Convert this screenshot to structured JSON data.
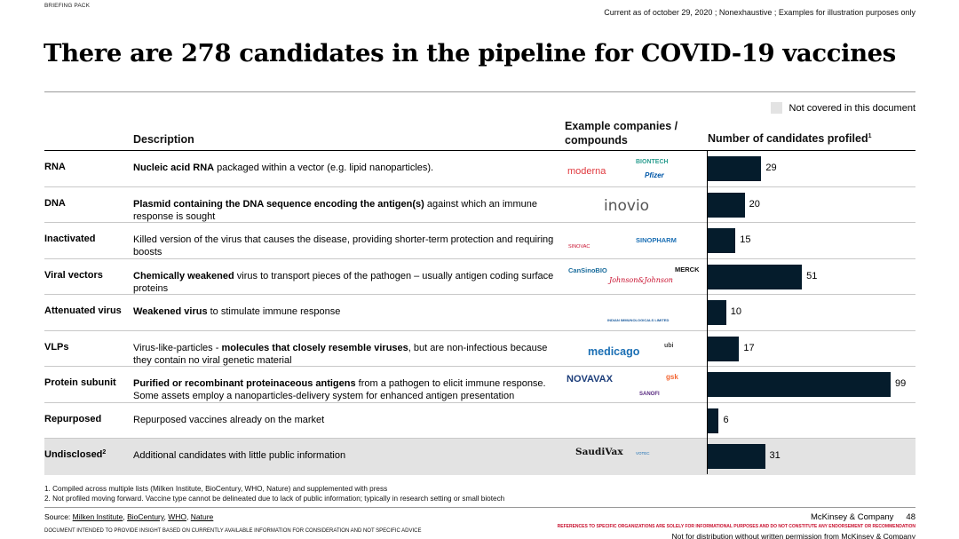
{
  "header": {
    "tag": "BRIEFING PACK",
    "note": "Current as of october 29, 2020 ; Nonexhaustive ; Examples for illustration purposes only",
    "title": "There are 278 candidates in the pipeline for COVID-19 vaccines"
  },
  "legend": {
    "label": "Not covered in this document",
    "color": "#e3e3e3"
  },
  "columns": {
    "description": "Description",
    "companies": "Example companies / compounds",
    "chart": "Number of candidates profiled",
    "chart_footnote": "1"
  },
  "rows": [
    {
      "name": "RNA",
      "desc_bold": "Nucleic acid RNA",
      "desc_rest": " packaged within a vector (e.g. lipid nanoparticles).",
      "logos": [
        "moderna",
        "BIONTECH",
        "Pfizer"
      ]
    },
    {
      "name": "DNA",
      "desc_bold": "Plasmid containing the DNA sequence encoding the antigen(s)",
      "desc_rest": " against which an immune response is sought",
      "logos": [
        "inovio"
      ]
    },
    {
      "name": "Inactivated",
      "desc_bold": "",
      "desc_rest": "Killed version of the virus that causes the disease, providing shorter-term protection and requiring boosts",
      "logos": [
        "SINOVAC",
        "SINOPHARM"
      ]
    },
    {
      "name": "Viral vectors",
      "desc_bold": "Chemically weakened",
      "desc_rest": " virus to transport pieces of the pathogen – usually antigen coding surface proteins",
      "logos": [
        "CanSinoBIO",
        "MERCK",
        "Johnson&Johnson"
      ]
    },
    {
      "name": "Attenuated virus",
      "desc_bold": "Weakened virus",
      "desc_rest": " to stimulate immune response",
      "logos": [
        "INDIAN IMMUNOLOGICALS LIMITED"
      ]
    },
    {
      "name": "VLPs",
      "desc_bold": "",
      "desc_rest": "Virus-like-particles - ",
      "desc_bold2": "molecules that closely resemble viruses",
      "desc_rest2": ", but are non-infectious because they contain no viral genetic material",
      "logos": [
        "medicago",
        "ubi"
      ]
    },
    {
      "name": "Protein subunit",
      "desc_bold": "Purified or recombinant proteinaceous antigens",
      "desc_rest": " from a pathogen to elicit immune response. Some assets employ a nanoparticles-delivery system for enhanced antigen presentation",
      "logos": [
        "NOVAVAX",
        "gsk",
        "SANOFI"
      ]
    },
    {
      "name": "Repurposed",
      "desc_bold": "",
      "desc_rest": "Repurposed vaccines already on the market",
      "logos": []
    },
    {
      "name": "Undisclosed",
      "name_sup": "2",
      "desc_bold": "",
      "desc_rest": "Additional candidates with little public information",
      "logos": [
        "SaudiVax",
        "VOTEC"
      ],
      "shaded": true
    }
  ],
  "chart_data": {
    "type": "bar",
    "orientation": "horizontal",
    "title": "Number of candidates profiled",
    "categories": [
      "RNA",
      "DNA",
      "Inactivated",
      "Viral vectors",
      "Attenuated virus",
      "VLPs",
      "Protein subunit",
      "Repurposed",
      "Undisclosed"
    ],
    "values": [
      29,
      20,
      15,
      51,
      10,
      17,
      99,
      6,
      31
    ],
    "xlim": [
      0,
      99
    ],
    "bar_color": "#051c2c",
    "grid": false
  },
  "footnotes": {
    "f1": "1. Compiled across multiple lists (Milken Institute, BioCentury, WHO, Nature) and supplemented with press",
    "f2": "2. Not profiled moving forward. Vaccine type cannot be delineated due to lack of public information; typically in research setting or small biotech"
  },
  "footer": {
    "source_label": "Source:",
    "sources": [
      "Milken Institute",
      "BioCentury",
      "WHO",
      "Nature"
    ],
    "doc_note": "DOCUMENT INTENDED TO PROVIDE INSIGHT BASED ON CURRENTLY AVAILABLE INFORMATION FOR CONSIDERATION AND NOT SPECIFIC ADVICE",
    "firm": "McKinsey & Company",
    "page": "48",
    "disclaimer": "REFERENCES TO SPECIFIC ORGANIZATIONS ARE SOLELY FOR INFORMATIONAL PURPOSES AND DO NOT CONSTITUTE ANY ENDORSEMENT OR RECOMMENDATION",
    "nodist": "Not for distribution without written permission from McKinsey & Company"
  }
}
